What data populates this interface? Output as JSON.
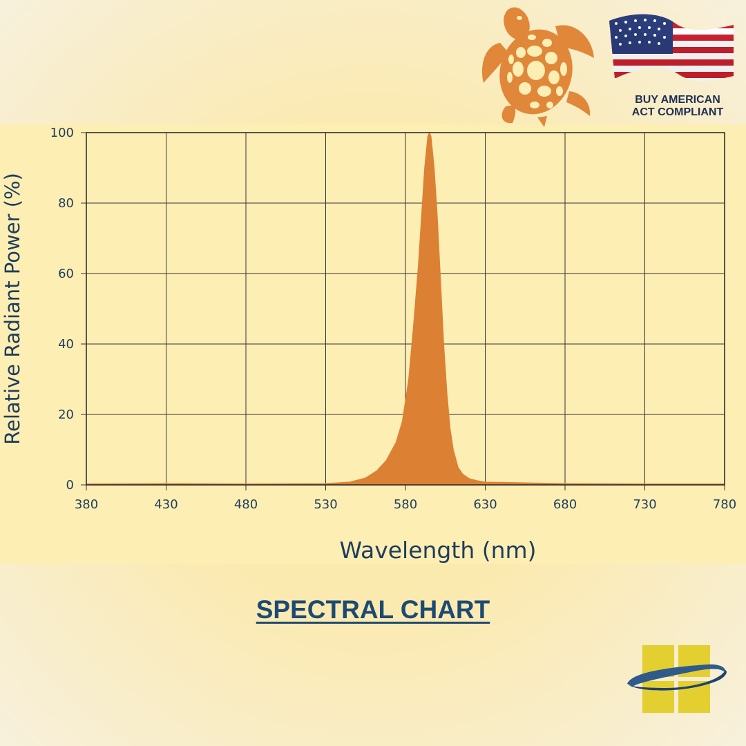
{
  "badge": {
    "line1": "BUY AMERICAN",
    "line2": "ACT COMPLIANT"
  },
  "footer": {
    "title": "SPECTRAL CHART"
  },
  "icons": {
    "turtle": "sea-turtle-icon",
    "flag": "us-flag-icon",
    "brand": "window-swoosh-logo-icon"
  },
  "colors": {
    "fill": "#dc8134",
    "axis_text": "#1f3d5c",
    "panel": "#fdeeb4",
    "title": "#1d4a72"
  },
  "chart_data": {
    "type": "area",
    "title": "",
    "xlabel": "Wavelength (nm)",
    "ylabel": "Relative Radiant Power (%)",
    "xlim": [
      380,
      780
    ],
    "ylim": [
      0,
      100
    ],
    "x_ticks": [
      380,
      430,
      480,
      530,
      580,
      630,
      680,
      730,
      780
    ],
    "y_ticks": [
      0,
      20,
      40,
      60,
      80,
      100
    ],
    "grid": true,
    "series": [
      {
        "x": [
          380,
          430,
          480,
          530,
          545,
          555,
          562,
          568,
          574,
          578,
          582,
          585,
          588,
          590,
          592,
          594,
          595,
          596,
          598,
          600,
          602,
          604,
          606,
          608,
          610,
          613,
          616,
          620,
          625,
          630,
          680,
          730,
          780
        ],
        "y": [
          0.3,
          0.4,
          0.3,
          0.4,
          0.8,
          2,
          4,
          7,
          12,
          18,
          30,
          45,
          62,
          76,
          90,
          99,
          100,
          99,
          90,
          76,
          58,
          40,
          26,
          16,
          10,
          5,
          3,
          1.8,
          1.2,
          0.8,
          0.4,
          0.3,
          0.3
        ]
      }
    ]
  }
}
